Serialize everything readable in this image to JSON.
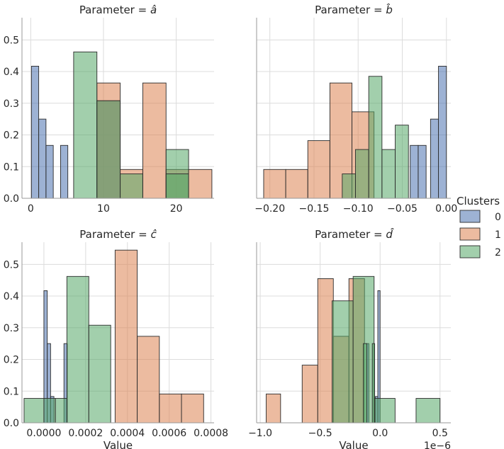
{
  "chart_data": [
    {
      "type": "bar",
      "panel": "a",
      "title": "Parameter = $\\hat{a}$",
      "title_prefix": "Parameter = ",
      "param_letter": "a",
      "xlabel": "",
      "ylabel": "",
      "xlim": [
        -1.2,
        25.2
      ],
      "ylim": [
        0,
        0.57
      ],
      "xticks": [
        0,
        10,
        20
      ],
      "xtick_labels": [
        "0",
        "10",
        "20"
      ],
      "yticks": [
        0,
        0.1,
        0.2,
        0.3,
        0.4,
        0.5
      ],
      "ytick_labels": [
        "0.0",
        "0.1",
        "0.2",
        "0.3",
        "0.4",
        "0.5"
      ],
      "show_ytick_labels": true,
      "series": [
        {
          "name": "0",
          "bins": [
            [
              0.1,
              1.1,
              0.417
            ],
            [
              1.1,
              2.1,
              0.25
            ],
            [
              2.1,
              3.1,
              0.167
            ],
            [
              4.1,
              5.1,
              0.167
            ],
            [
              9.1,
              12.3,
              0.308
            ]
          ]
        },
        {
          "name": "1",
          "bins": [
            [
              9.1,
              12.3,
              0.364
            ],
            [
              12.3,
              15.4,
              0.091
            ],
            [
              15.4,
              18.6,
              0.364
            ],
            [
              18.6,
              21.7,
              0.091
            ],
            [
              21.7,
              24.9,
              0.091
            ]
          ]
        },
        {
          "name": "2",
          "bins": [
            [
              5.9,
              9.1,
              0.462
            ],
            [
              9.1,
              12.3,
              0.308
            ],
            [
              12.3,
              15.4,
              0.077
            ],
            [
              18.6,
              21.7,
              0.154
            ],
            [
              18.6,
              21.7,
              0.077
            ]
          ]
        }
      ]
    },
    {
      "type": "bar",
      "panel": "b",
      "title": "Parameter = $\\hat{b}$",
      "title_prefix": "Parameter = ",
      "param_letter": "b",
      "xlabel": "",
      "ylabel": "",
      "xlim": [
        -0.215,
        0.005
      ],
      "ylim": [
        0,
        0.57
      ],
      "xticks": [
        -0.2,
        -0.15,
        -0.1,
        -0.05,
        0.0
      ],
      "xtick_labels": [
        "−0.20",
        "−0.15",
        "−0.10",
        "−0.05",
        "0.00"
      ],
      "yticks": [
        0,
        0.1,
        0.2,
        0.3,
        0.4,
        0.5
      ],
      "ytick_labels": [],
      "show_ytick_labels": false,
      "series": [
        {
          "name": "0",
          "bins": [
            [
              -0.041,
              -0.032,
              0.167
            ],
            [
              -0.032,
              -0.023,
              0.167
            ],
            [
              -0.009,
              0.0,
              0.417
            ],
            [
              -0.018,
              -0.009,
              0.25
            ]
          ]
        },
        {
          "name": "1",
          "bins": [
            [
              -0.207,
              -0.182,
              0.091
            ],
            [
              -0.182,
              -0.157,
              0.091
            ],
            [
              -0.157,
              -0.132,
              0.182
            ],
            [
              -0.132,
              -0.107,
              0.364
            ],
            [
              -0.107,
              -0.082,
              0.273
            ]
          ]
        },
        {
          "name": "2",
          "bins": [
            [
              -0.118,
              -0.103,
              0.077
            ],
            [
              -0.103,
              -0.088,
              0.154
            ],
            [
              -0.088,
              -0.073,
              0.385
            ],
            [
              -0.073,
              -0.058,
              0.154
            ],
            [
              -0.058,
              -0.043,
              0.231
            ]
          ]
        }
      ]
    },
    {
      "type": "bar",
      "panel": "c",
      "title": "Parameter = $\\hat{c}$",
      "title_prefix": "Parameter = ",
      "param_letter": "c",
      "xlabel": "Value",
      "ylabel": "",
      "xlim": [
        -0.000105,
        0.000815
      ],
      "ylim": [
        0,
        0.57
      ],
      "xticks": [
        0,
        0.0002,
        0.0004,
        0.0006,
        0.0008
      ],
      "xtick_labels": [
        "0.0000",
        "0.0002",
        "0.0004",
        "0.0006",
        "0.0008"
      ],
      "yticks": [
        0,
        0.1,
        0.2,
        0.3,
        0.4,
        0.5
      ],
      "ytick_labels": [
        "0.0",
        "0.1",
        "0.2",
        "0.3",
        "0.4",
        "0.5"
      ],
      "show_ytick_labels": true,
      "series": [
        {
          "name": "0",
          "bins": [
            [
              0.0,
              1.6e-05,
              0.417
            ],
            [
              1.6e-05,
              3.2e-05,
              0.25
            ],
            [
              3.2e-05,
              4.8e-05,
              0.083
            ],
            [
              4.8e-05,
              6.4e-05,
              0.0
            ],
            [
              9.6e-05,
              0.000112,
              0.25
            ]
          ]
        },
        {
          "name": "1",
          "bins": [
            [
              0.000341,
              0.000447,
              0.545
            ],
            [
              0.000447,
              0.000553,
              0.273
            ],
            [
              0.000553,
              0.000659,
              0.091
            ],
            [
              0.000659,
              0.000765,
              0.091
            ]
          ]
        },
        {
          "name": "2",
          "bins": [
            [
              -9.5e-05,
              0.0,
              0.077
            ],
            [
              0.0,
              5.5e-05,
              0.077
            ],
            [
              5.5e-05,
              0.00011,
              0.077
            ],
            [
              0.00011,
              0.000215,
              0.462
            ],
            [
              0.000215,
              0.00032,
              0.308
            ]
          ]
        }
      ]
    },
    {
      "type": "bar",
      "panel": "d",
      "title": "Parameter = $\\hat{d}$",
      "title_prefix": "Parameter = ",
      "param_letter": "d",
      "xlabel": "Value",
      "ylabel": "",
      "offset_label": "1e−6",
      "xlim": [
        -1.03,
        0.59
      ],
      "ylim": [
        0,
        0.57
      ],
      "xticks": [
        -1.0,
        -0.5,
        0.0,
        0.5
      ],
      "xtick_labels": [
        "−1.0",
        "−0.5",
        "0.0",
        "0.5"
      ],
      "yticks": [
        0,
        0.1,
        0.2,
        0.3,
        0.4,
        0.5
      ],
      "ytick_labels": [],
      "show_ytick_labels": false,
      "series": [
        {
          "name": "0",
          "bins": [
            [
              -0.112,
              -0.093,
              0.25
            ],
            [
              -0.039,
              -0.019,
              0.083
            ],
            [
              -0.019,
              0.0,
              0.417
            ]
          ]
        },
        {
          "name": "1",
          "bins": [
            [
              -0.95,
              -0.83,
              0.091
            ],
            [
              -0.65,
              -0.52,
              0.182
            ],
            [
              -0.52,
              -0.39,
              0.455
            ],
            [
              -0.39,
              -0.26,
              0.273
            ],
            [
              -0.26,
              -0.13,
              0.455
            ]
          ]
        },
        {
          "name": "2",
          "bins": [
            [
              -0.4,
              -0.225,
              0.385
            ],
            [
              -0.225,
              -0.05,
              0.462
            ],
            [
              -0.05,
              0.125,
              0.077
            ],
            [
              0.3,
              0.5,
              0.077
            ],
            [
              -0.14,
              -0.11,
              0.25
            ],
            [
              -0.065,
              -0.045,
              0.25
            ]
          ]
        }
      ]
    }
  ],
  "legend": {
    "title": "Clusters",
    "placement": "right",
    "items": [
      {
        "label": "0",
        "color": "#4c72b0"
      },
      {
        "label": "1",
        "color": "#dd8452"
      },
      {
        "label": "2",
        "color": "#55a868"
      }
    ]
  }
}
